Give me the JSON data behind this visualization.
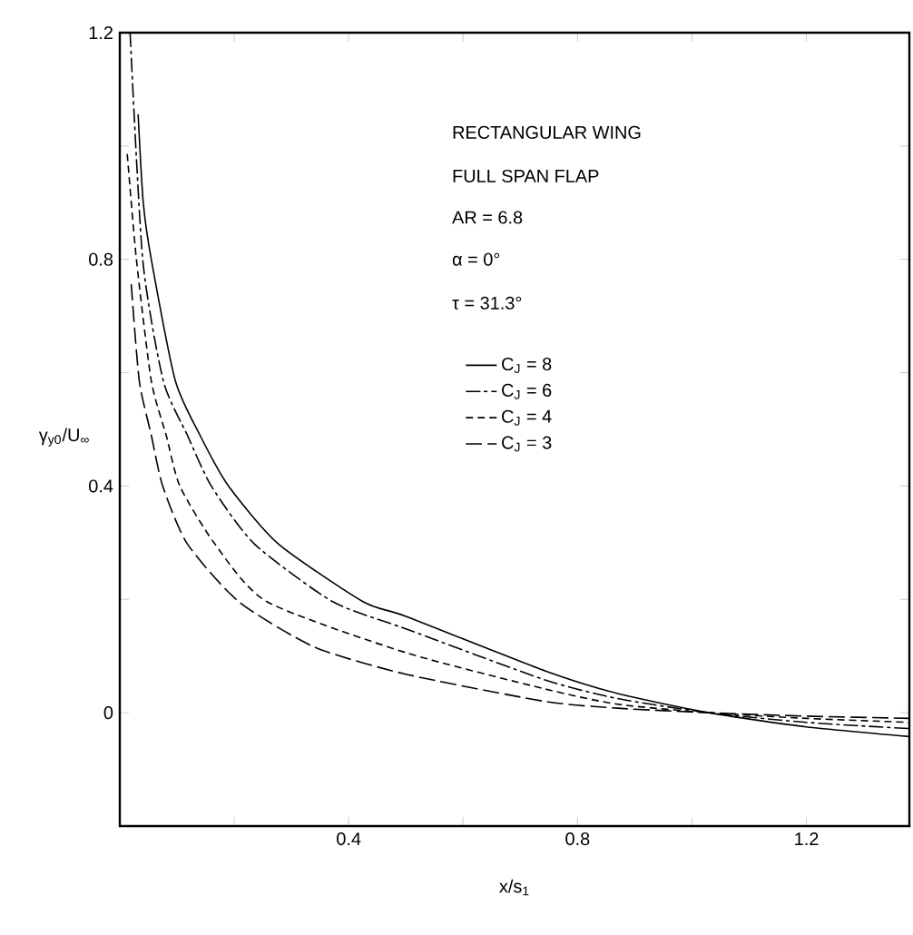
{
  "chart_data": {
    "type": "line",
    "xlabel": "x/s$_{1}$",
    "ylabel": "γ$_{y0}$/U$_{∞}$",
    "annotations": [
      "RECTANGULAR WING",
      "FULL SPAN FLAP",
      "AR = 6.8",
      "α = 0°",
      "τ = 31.3°"
    ],
    "xlim": [
      0,
      1.38
    ],
    "ylim": [
      -0.2,
      1.2
    ],
    "xticks": [
      {
        "value": 0.2,
        "label": null
      },
      0.4,
      {
        "value": 0.6,
        "label": null
      },
      0.8,
      {
        "value": 1.0,
        "label": null
      },
      1.2
    ],
    "yticks": [
      0,
      {
        "value": 0.2,
        "label": null
      },
      0.4,
      {
        "value": 0.6,
        "label": null
      },
      0.8,
      {
        "value": 1.0,
        "label": null
      },
      1.2
    ],
    "legend": "right",
    "grid": false,
    "series": [
      {
        "name": "C$_{J}$ = 8",
        "color": "#000000",
        "line_style": "solid",
        "x": [
          0.032,
          0.041,
          0.055,
          0.097,
          0.14,
          0.19,
          0.277,
          0.425,
          0.5,
          0.743,
          0.87,
          1.03,
          1.2,
          1.38
        ],
        "values": [
          1.056,
          0.9,
          0.8,
          0.586,
          0.49,
          0.4,
          0.298,
          0.196,
          0.17,
          0.074,
          0.034,
          0.0,
          -0.025,
          -0.042
        ]
      },
      {
        "name": "C$_{J}$ = 6",
        "color": "#000000",
        "line_style": "dashdot",
        "x": [
          0.018,
          0.04,
          0.076,
          0.118,
          0.16,
          0.235,
          0.372,
          0.5,
          0.743,
          0.87,
          1.03,
          1.2,
          1.38
        ],
        "values": [
          1.2,
          0.8,
          0.586,
          0.49,
          0.4,
          0.298,
          0.196,
          0.148,
          0.058,
          0.025,
          0.0,
          -0.017,
          -0.028
        ]
      },
      {
        "name": "C$_{J}$ = 4",
        "color": "#000000",
        "line_style": "dashed",
        "x": [
          0.013,
          0.029,
          0.055,
          0.081,
          0.105,
          0.166,
          0.257,
          0.5,
          0.743,
          0.87,
          1.03,
          1.2,
          1.38
        ],
        "values": [
          0.986,
          0.8,
          0.586,
          0.49,
          0.4,
          0.298,
          0.196,
          0.106,
          0.042,
          0.015,
          0.0,
          -0.01,
          -0.017
        ]
      },
      {
        "name": "C$_{J}$ = 3",
        "color": "#000000",
        "line_style": "longdash",
        "x": [
          0.02,
          0.034,
          0.055,
          0.075,
          0.118,
          0.208,
          0.34,
          0.5,
          0.743,
          0.87,
          1.03,
          1.2,
          1.38
        ],
        "values": [
          0.756,
          0.586,
          0.49,
          0.4,
          0.298,
          0.196,
          0.116,
          0.068,
          0.02,
          0.008,
          0.0,
          -0.006,
          -0.01
        ]
      }
    ]
  }
}
